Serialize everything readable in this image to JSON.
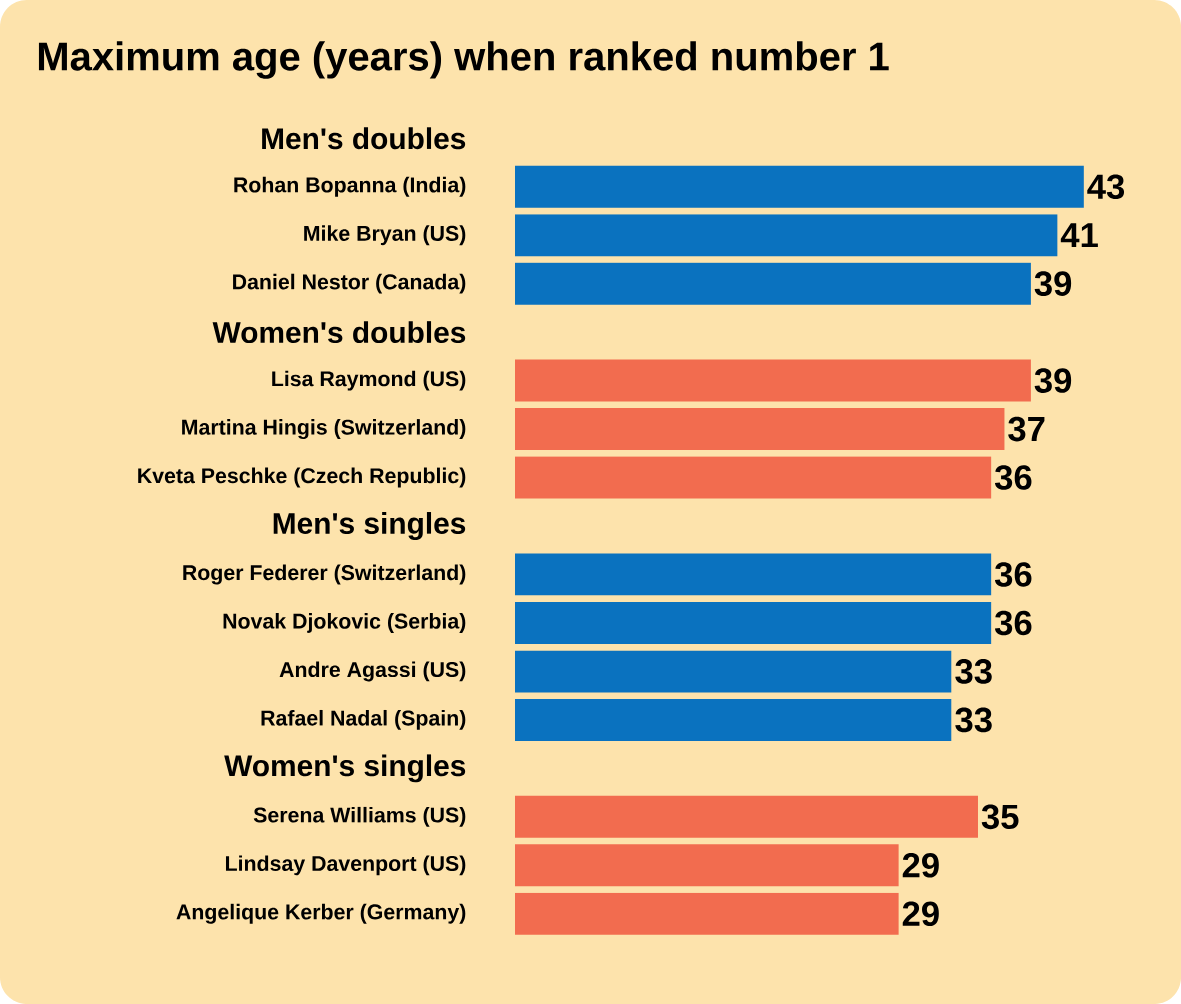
{
  "chart_data": {
    "type": "bar",
    "orientation": "horizontal",
    "title": "Maximum age (years) when ranked number 1",
    "categories": [
      "Men's doubles",
      "Rohan Bopanna (India)",
      "Mike Bryan (US)",
      "Daniel Nestor (Canada)",
      "Women's doubles",
      "Lisa Raymond (US)",
      "Martina Hingis (Switzerland)",
      "Kveta Peschke (Czech Republic)",
      "Men's singles",
      "Roger Federer (Switzerland)",
      "Novak Djokovic (Serbia)",
      "Andre Agassi (US)",
      "Rafael Nadal (Spain)",
      "Women's singles",
      "Serena Williams (US)",
      "Lindsay Davenport (US)",
      "Angelique Kerber (Germany)"
    ],
    "values": [
      null,
      43,
      41,
      39,
      null,
      39,
      37,
      36,
      null,
      36,
      36,
      33,
      33,
      null,
      35,
      29,
      29
    ],
    "colors": [
      null,
      "#0a72bf",
      "#0a72bf",
      "#0a72bf",
      null,
      "#f26c4f",
      "#f26c4f",
      "#f26c4f",
      null,
      "#0a72bf",
      "#0a72bf",
      "#0a72bf",
      "#0a72bf",
      null,
      "#f26c4f",
      "#f26c4f",
      "#f26c4f"
    ],
    "data_labels": true,
    "tick_labels": "y"
  }
}
